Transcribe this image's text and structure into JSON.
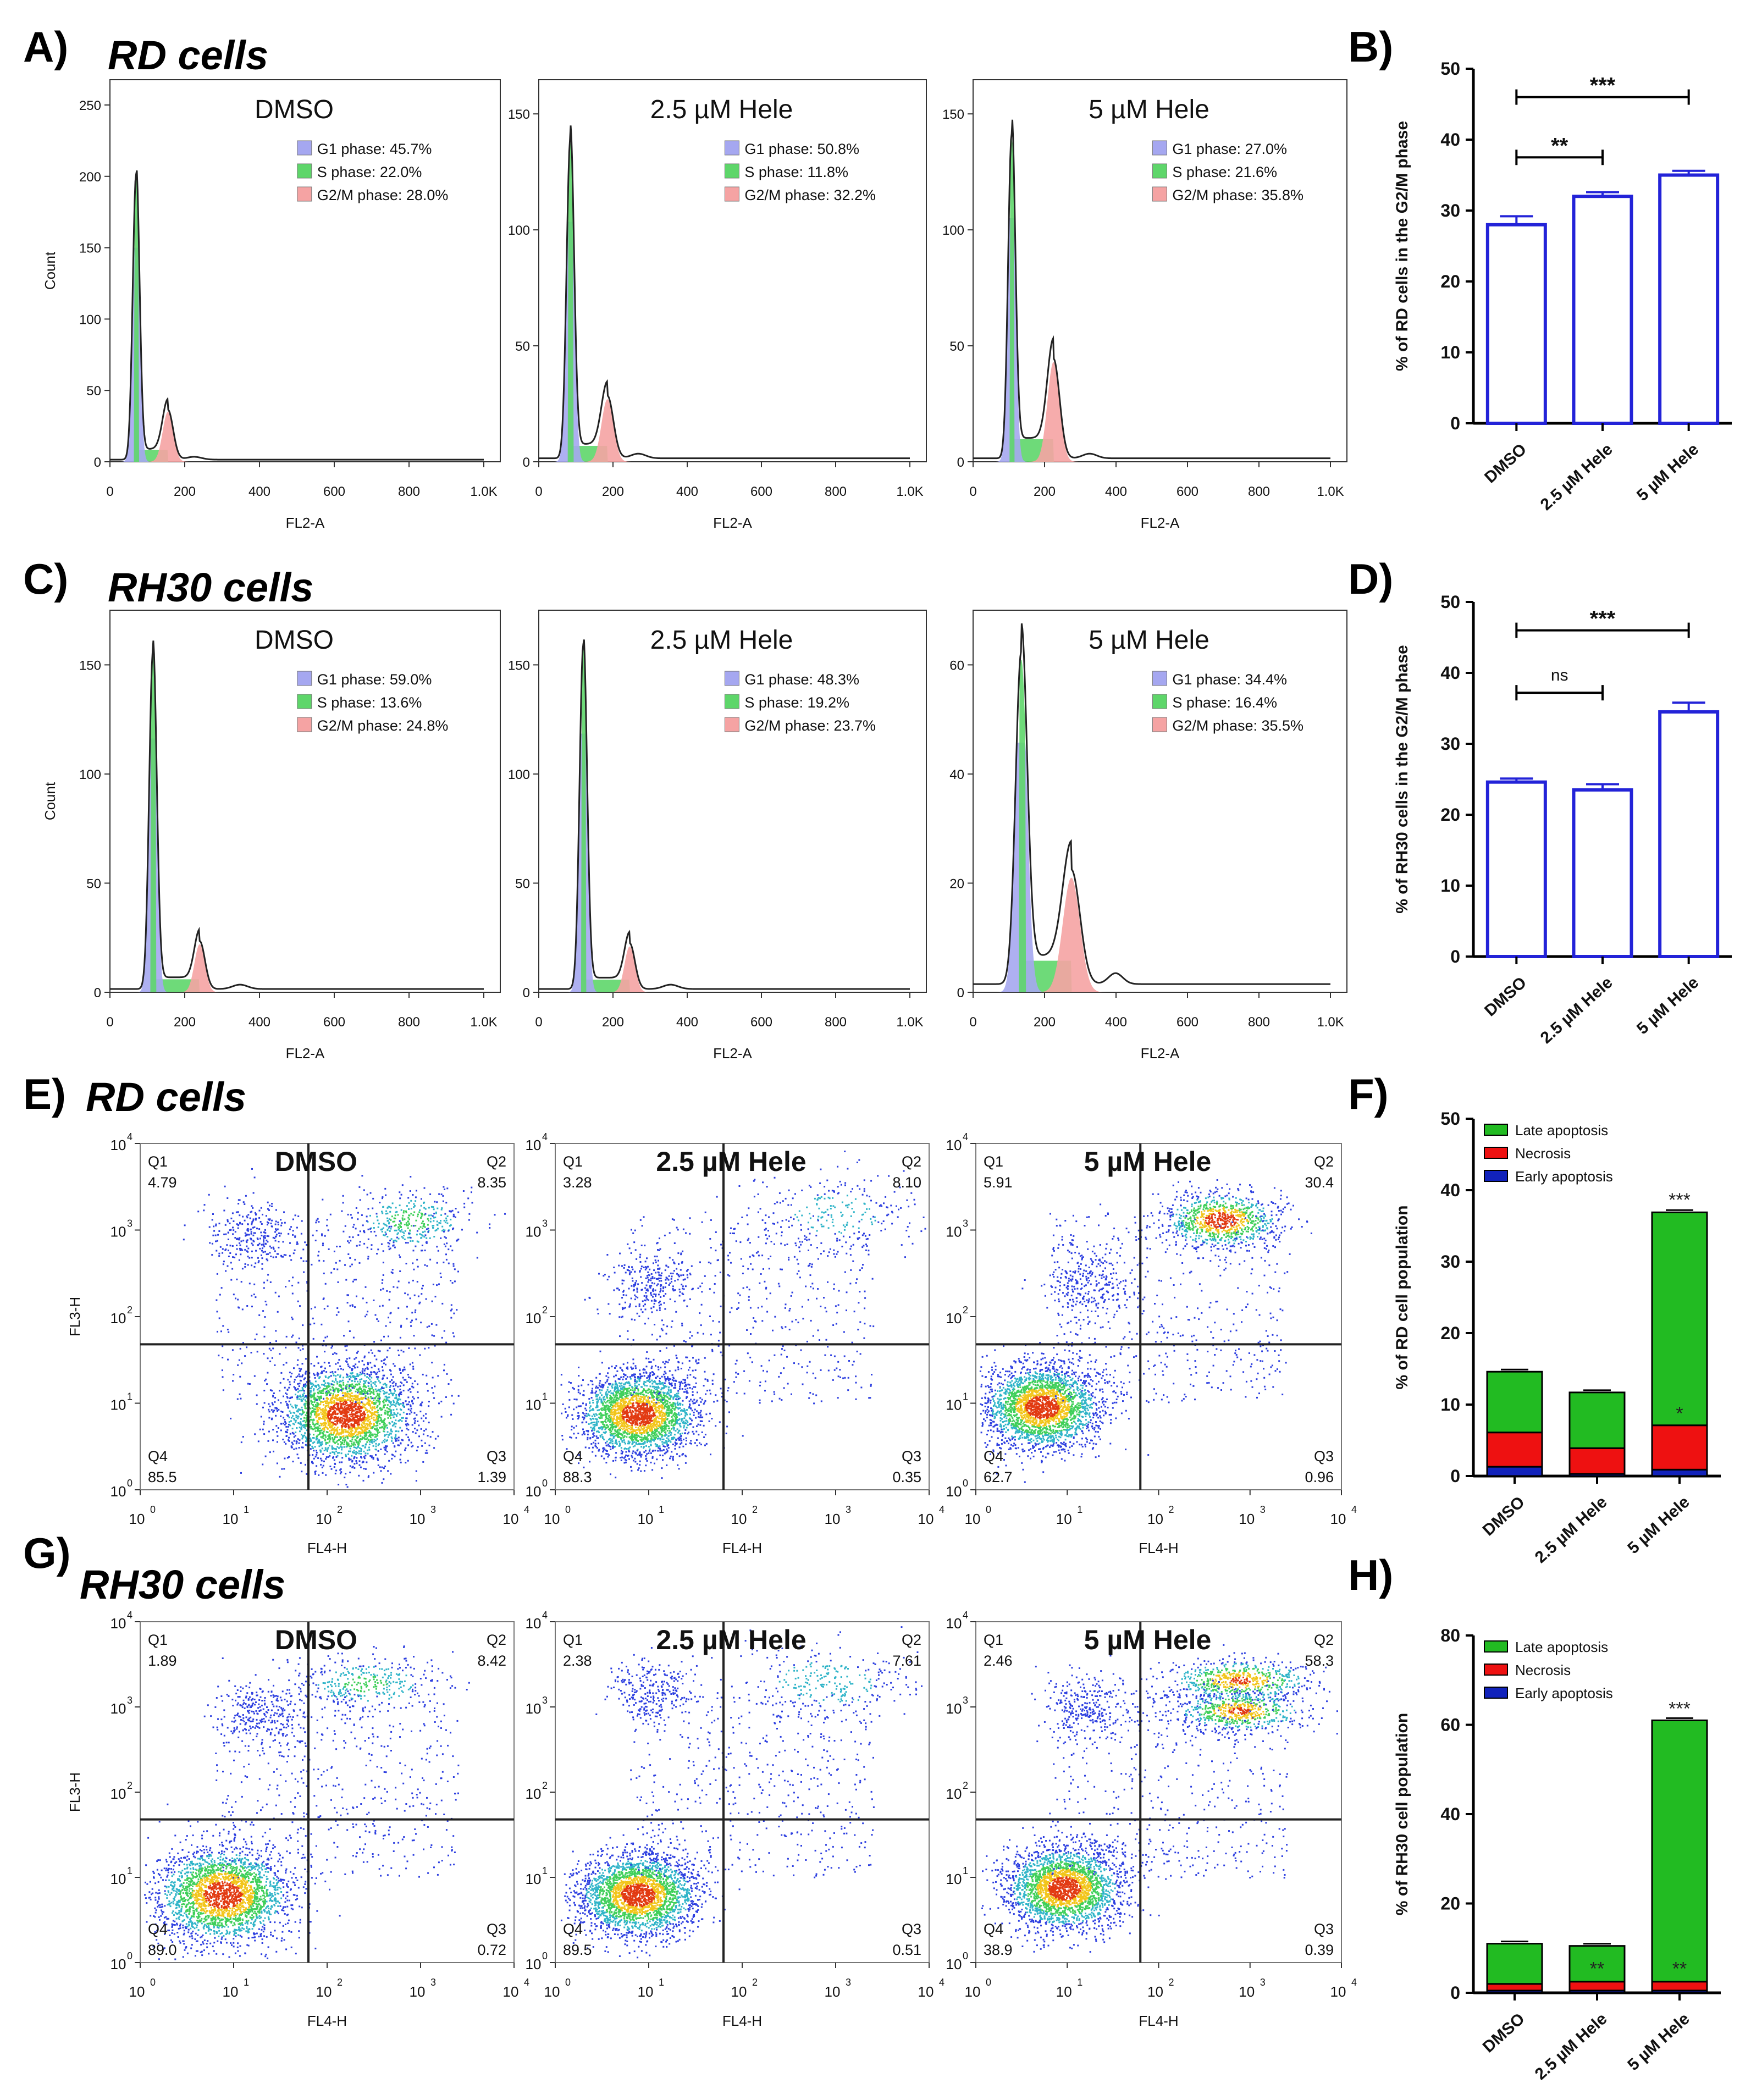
{
  "panel_letters": [
    "A)",
    "B)",
    "C)",
    "D)",
    "E)",
    "F)",
    "G)",
    "H)"
  ],
  "row_titles": {
    "A": "RD cells",
    "C": "RH30 cells",
    "E": "RD cells",
    "G": "RH30 cells"
  },
  "colors": {
    "g1": "#a5a7f0",
    "s": "#5ed66a",
    "g2m": "#f5a3a3",
    "trace": "#222222",
    "bar_outline": "#2323d8",
    "late": "#22bb22",
    "necrosis": "#ee1111",
    "early": "#1122bb"
  },
  "chart_data": [
    {
      "id": "A",
      "type": "area",
      "xlabel": "FL2-A",
      "ylabel": "Count",
      "xticks": [
        "0",
        "200",
        "400",
        "600",
        "800",
        "1.0K"
      ],
      "plots": [
        {
          "title": "DMSO",
          "ylim": [
            0,
            260
          ],
          "yticks": [
            "0",
            "50",
            "100",
            "150",
            "200",
            "250"
          ],
          "legend": [
            "G1 phase: 45.7%",
            "S phase: 22.0%",
            "G2/M phase: 28.0%"
          ],
          "g1_peak": 70,
          "g1_height": 200,
          "g1_width": 9,
          "g2_peak": 155,
          "g2_height": 35,
          "g2_width": 14
        },
        {
          "title": "2.5 µM Hele",
          "ylim": [
            0,
            160
          ],
          "yticks": [
            "0",
            "50",
            "100",
            "150"
          ],
          "legend": [
            "G1 phase: 50.8%",
            "S phase: 11.8%",
            "G2/M phase: 32.2%"
          ],
          "g1_peak": 85,
          "g1_height": 138,
          "g1_width": 10,
          "g2_peak": 185,
          "g2_height": 27,
          "g2_width": 16
        },
        {
          "title": "5 µM Hele",
          "ylim": [
            0,
            160
          ],
          "yticks": [
            "0",
            "50",
            "100",
            "150"
          ],
          "legend": [
            "G1 phase: 27.0%",
            "S phase: 21.6%",
            "G2/M phase: 35.8%"
          ],
          "g1_peak": 108,
          "g1_height": 140,
          "g1_width": 10,
          "g2_peak": 225,
          "g2_height": 43,
          "g2_width": 17
        }
      ]
    },
    {
      "id": "B",
      "type": "bar",
      "ylabel": "% of RD cells in the G2/M phase",
      "categories": [
        "DMSO",
        "2.5 µM Hele",
        "5 µM Hele"
      ],
      "values": [
        28.0,
        32.0,
        35.0
      ],
      "errors": [
        1.2,
        0.6,
        0.6
      ],
      "ylim": [
        0,
        50
      ],
      "yticks": [
        "0",
        "10",
        "20",
        "30",
        "40",
        "50"
      ],
      "annotations": [
        {
          "from": 0,
          "to": 1,
          "label": "**",
          "y": 37.5
        },
        {
          "from": 0,
          "to": 2,
          "label": "***",
          "y": 46
        }
      ]
    },
    {
      "id": "C",
      "type": "area",
      "xlabel": "FL2-A",
      "ylabel": "Count",
      "xticks": [
        "0",
        "200",
        "400",
        "600",
        "800",
        "1.0K"
      ],
      "plots": [
        {
          "title": "DMSO",
          "ylim": [
            0,
            170
          ],
          "yticks": [
            "0",
            "50",
            "100",
            "150"
          ],
          "legend": [
            "G1 phase: 59.0%",
            "S phase: 13.6%",
            "G2/M phase: 24.8%"
          ],
          "g1_peak": 115,
          "g1_height": 155,
          "g1_width": 10,
          "g2_peak": 240,
          "g2_height": 22,
          "g2_width": 14
        },
        {
          "title": "2.5 µM Hele",
          "ylim": [
            0,
            170
          ],
          "yticks": [
            "0",
            "50",
            "100",
            "150"
          ],
          "legend": [
            "G1 phase: 48.3%",
            "S phase: 19.2%",
            "G2/M phase: 23.7%"
          ],
          "g1_peak": 120,
          "g1_height": 158,
          "g1_width": 10,
          "g2_peak": 245,
          "g2_height": 21,
          "g2_width": 14
        },
        {
          "title": "5 µM Hele",
          "ylim": [
            0,
            68
          ],
          "yticks": [
            "0",
            "20",
            "40",
            "60"
          ],
          "legend": [
            "G1 phase: 34.4%",
            "S phase: 16.4%",
            "G2/M phase: 35.5%"
          ],
          "g1_peak": 135,
          "g1_height": 61,
          "g1_width": 16,
          "g2_peak": 275,
          "g2_height": 21,
          "g2_width": 24
        }
      ]
    },
    {
      "id": "D",
      "type": "bar",
      "ylabel": "% of RH30 cells in the G2/M phase",
      "categories": [
        "DMSO",
        "2.5 µM Hele",
        "5 µM Hele"
      ],
      "values": [
        24.6,
        23.5,
        34.5
      ],
      "errors": [
        0.5,
        0.8,
        1.3
      ],
      "ylim": [
        0,
        50
      ],
      "yticks": [
        "0",
        "10",
        "20",
        "30",
        "40",
        "50"
      ],
      "annotations": [
        {
          "from": 0,
          "to": 1,
          "label": "ns",
          "y": 37.2
        },
        {
          "from": 0,
          "to": 2,
          "label": "***",
          "y": 46
        }
      ]
    },
    {
      "id": "E",
      "type": "scatter",
      "xlabel": "FL4-H",
      "ylabel": "FL3-H",
      "ticks": [
        "10",
        "10",
        "10",
        "10",
        "10"
      ],
      "tick_exponents": [
        "0",
        "1",
        "2",
        "3",
        "4"
      ],
      "plots": [
        {
          "title": "DMSO",
          "q1_label": "Q1",
          "q1": "4.79",
          "q2_label": "Q2",
          "q2": "8.35",
          "q3_label": "Q3",
          "q3": "1.39",
          "q4_label": "Q4",
          "q4": "85.5"
        },
        {
          "title": "2.5 µM Hele",
          "q1_label": "Q1",
          "q1": "3.28",
          "q2_label": "Q2",
          "q2": "8.10",
          "q3_label": "Q3",
          "q3": "0.35",
          "q4_label": "Q4",
          "q4": "88.3"
        },
        {
          "title": "5 µM Hele",
          "q1_label": "Q1",
          "q1": "5.91",
          "q2_label": "Q2",
          "q2": "30.4",
          "q3_label": "Q3",
          "q3": "0.96",
          "q4_label": "Q4",
          "q4": "62.7"
        }
      ]
    },
    {
      "id": "F",
      "type": "bar",
      "ylabel": "% of RD cell population",
      "categories": [
        "DMSO",
        "2.5 µM Hele",
        "5 µM Hele"
      ],
      "legend": [
        "Late apoptosis",
        "Necrosis",
        "Early apoptosis"
      ],
      "series": [
        {
          "name": "Early apoptosis",
          "values": [
            1.3,
            0.3,
            0.9
          ]
        },
        {
          "name": "Necrosis",
          "values": [
            4.8,
            3.6,
            6.2
          ]
        },
        {
          "name": "Late apoptosis",
          "values": [
            8.5,
            7.8,
            29.8
          ]
        }
      ],
      "ylim": [
        0,
        50
      ],
      "yticks": [
        "0",
        "10",
        "20",
        "30",
        "40",
        "50"
      ],
      "marks": [
        {
          "bar": 2,
          "at": 37.0,
          "label": "***"
        },
        {
          "bar": 2,
          "at": 7.1,
          "label": "*"
        }
      ]
    },
    {
      "id": "G",
      "type": "scatter",
      "xlabel": "FL4-H",
      "ylabel": "FL3-H",
      "ticks": [
        "10",
        "10",
        "10",
        "10",
        "10"
      ],
      "tick_exponents": [
        "0",
        "1",
        "2",
        "3",
        "4"
      ],
      "plots": [
        {
          "title": "DMSO",
          "q1_label": "Q1",
          "q1": "1.89",
          "q2_label": "Q2",
          "q2": "8.42",
          "q3_label": "Q3",
          "q3": "0.72",
          "q4_label": "Q4",
          "q4": "89.0"
        },
        {
          "title": "2.5 µM Hele",
          "q1_label": "Q1",
          "q1": "2.38",
          "q2_label": "Q2",
          "q2": "7.61",
          "q3_label": "Q3",
          "q3": "0.51",
          "q4_label": "Q4",
          "q4": "89.5"
        },
        {
          "title": "5 µM Hele",
          "q1_label": "Q1",
          "q1": "2.46",
          "q2_label": "Q2",
          "q2": "58.3",
          "q3_label": "Q3",
          "q3": "0.39",
          "q4_label": "Q4",
          "q4": "38.9"
        }
      ]
    },
    {
      "id": "H",
      "type": "bar",
      "ylabel": "% of RH30 cell population",
      "categories": [
        "DMSO",
        "2.5 µM Hele",
        "5 µM Hele"
      ],
      "legend": [
        "Late apoptosis",
        "Necrosis",
        "Early apoptosis"
      ],
      "series": [
        {
          "name": "Early apoptosis",
          "values": [
            0.5,
            0.5,
            0.5
          ]
        },
        {
          "name": "Necrosis",
          "values": [
            1.5,
            2.0,
            2.0
          ]
        },
        {
          "name": "Late apoptosis",
          "values": [
            9.0,
            8.0,
            58.5
          ]
        }
      ],
      "ylim": [
        0,
        80
      ],
      "yticks": [
        "0",
        "20",
        "40",
        "60",
        "80"
      ],
      "marks": [
        {
          "bar": 2,
          "at": 61.0,
          "label": "***"
        },
        {
          "bar": 1,
          "at": 2.8,
          "label": "**"
        },
        {
          "bar": 2,
          "at": 2.8,
          "label": "**"
        }
      ]
    }
  ]
}
